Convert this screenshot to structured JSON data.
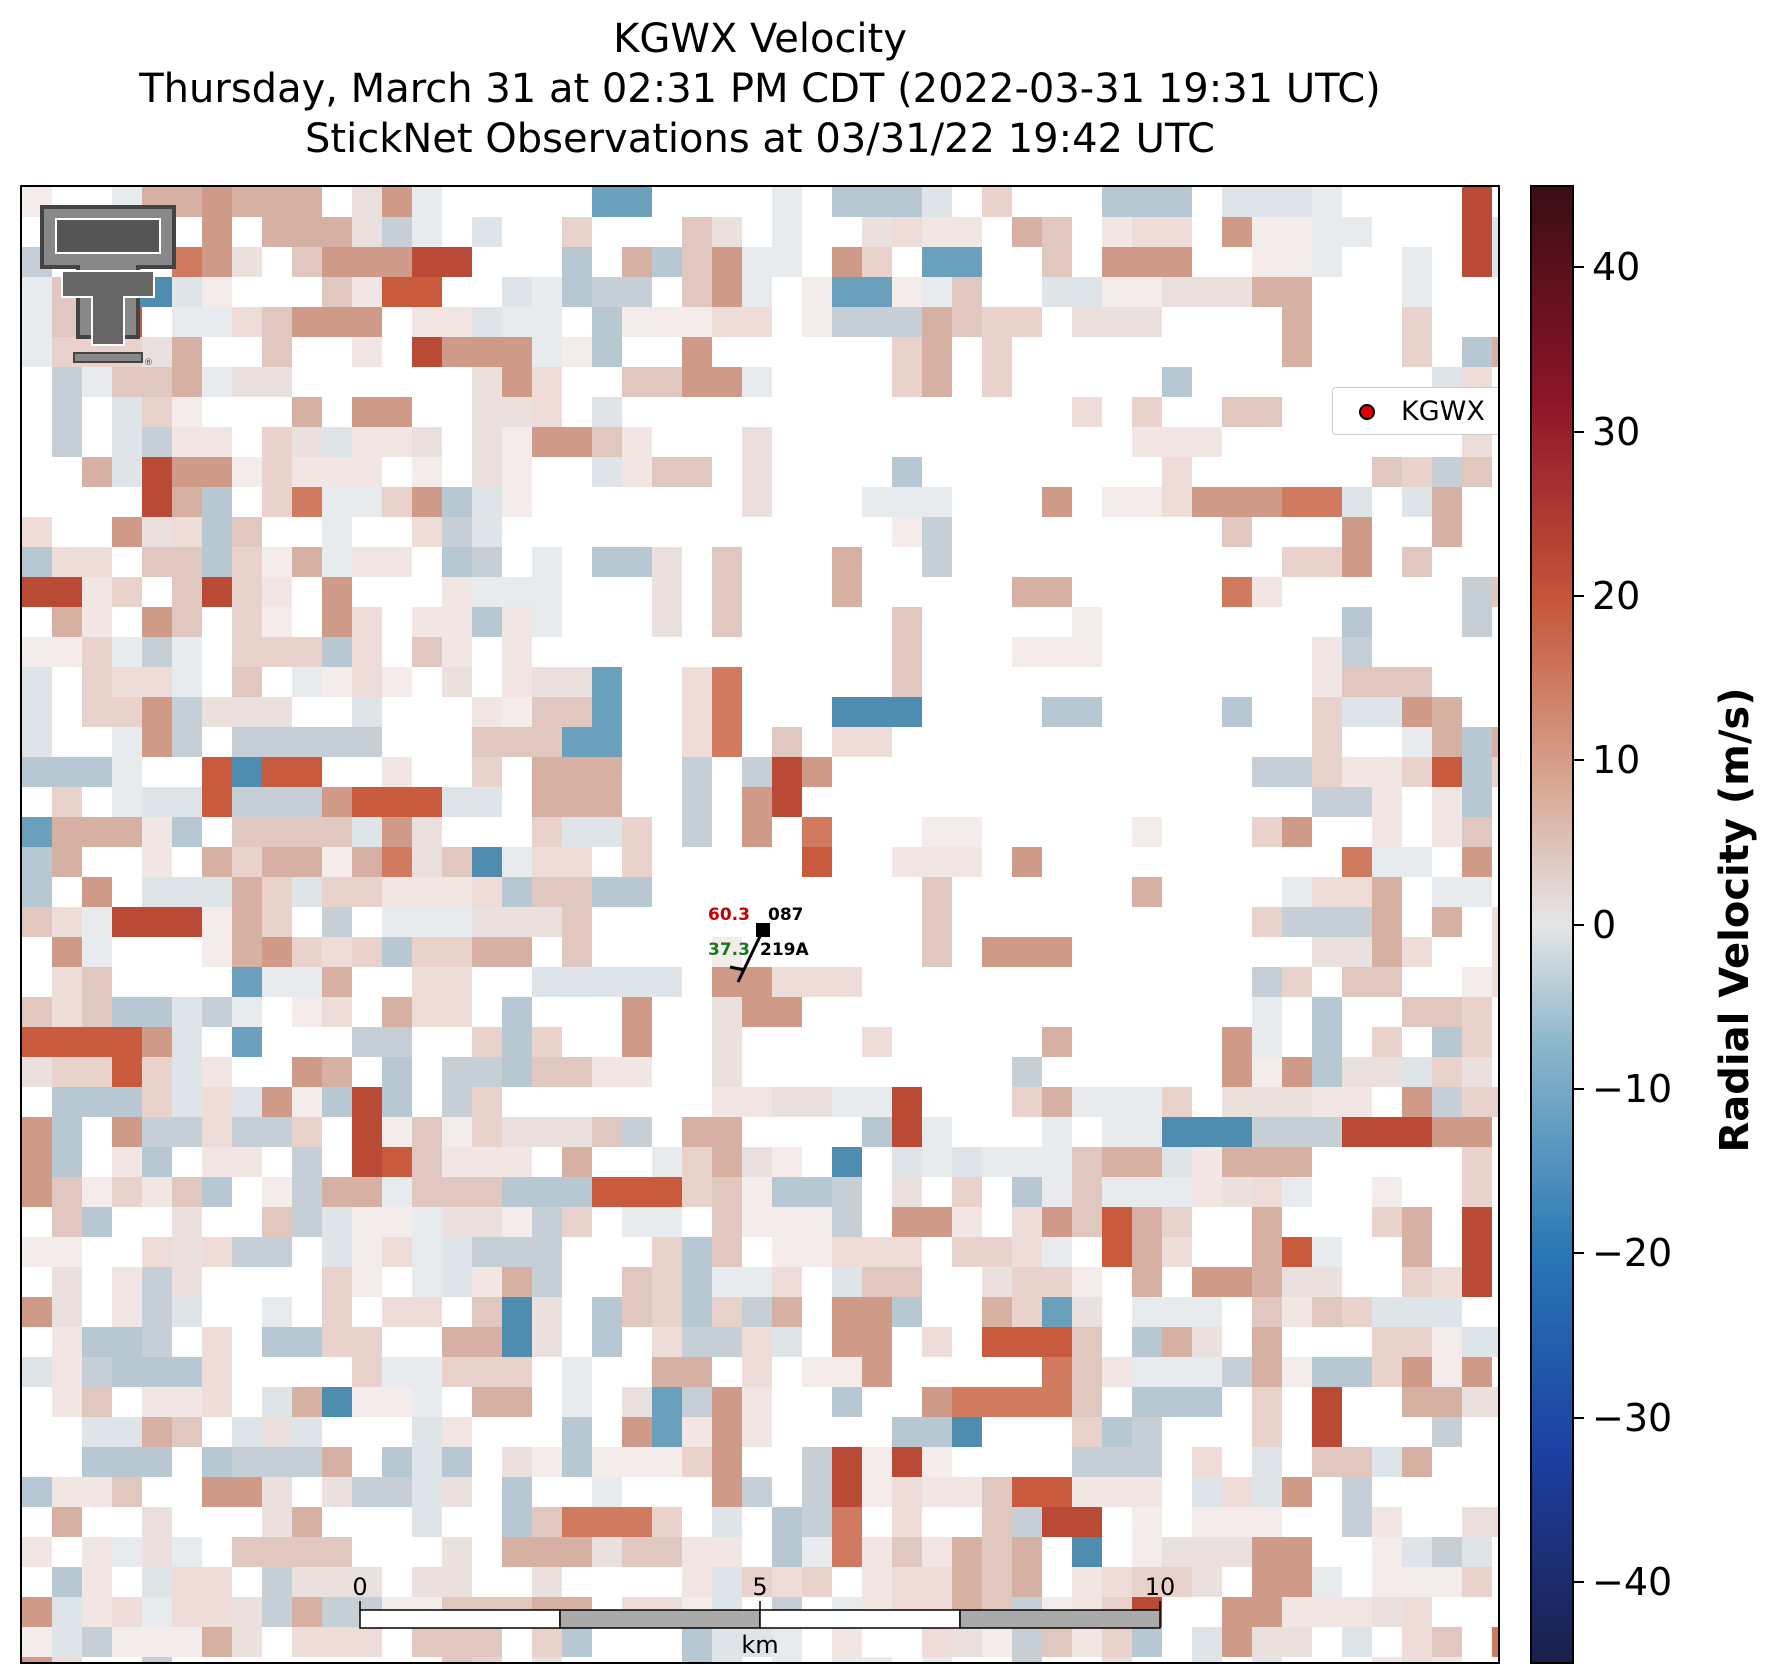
{
  "title": {
    "line1": "KGWX Velocity",
    "line2": "Thursday, March 31 at 02:31 PM CDT (2022-03-31 19:31 UTC)",
    "line3": "StickNet Observations at 03/31/22 19:42 UTC"
  },
  "legend": {
    "label": "KGWX",
    "marker_color": "#e00000"
  },
  "colorbar": {
    "label": "Radial Velocity (m/s)",
    "ticks": [
      "40",
      "30",
      "20",
      "10",
      "0",
      "−10",
      "−20",
      "−30",
      "−40"
    ],
    "range": [
      -45,
      45
    ]
  },
  "station": {
    "temperature": "60.3",
    "pressure": "087",
    "dewpoint": "37.3",
    "station_id": "219A",
    "temperature_color": "#c00000",
    "dewpoint_color": "#1a7a1a"
  },
  "scale_bar": {
    "unit_label": "km",
    "ticks": [
      "0",
      "5",
      "10"
    ]
  },
  "logo": {
    "name": "texas-tech-double-t-logo"
  }
}
